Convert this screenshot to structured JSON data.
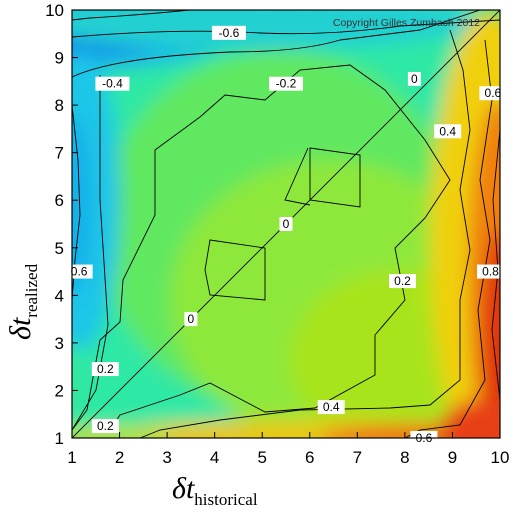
{
  "chart_data": {
    "type": "contour",
    "x_values": [
      1,
      2,
      3,
      4,
      5,
      6,
      7,
      8,
      9,
      10
    ],
    "y_values": [
      1,
      2,
      3,
      4,
      5,
      6,
      7,
      8,
      9,
      10
    ],
    "xlim": [
      1,
      10
    ],
    "ylim": [
      1,
      10
    ],
    "xlabel": {
      "main": "δt",
      "sub": "historical"
    },
    "ylabel": {
      "main": "δt",
      "sub": "realized"
    },
    "x_ticks": [
      "1",
      "2",
      "3",
      "4",
      "5",
      "6",
      "7",
      "8",
      "9",
      "10"
    ],
    "y_ticks": [
      "1",
      "2",
      "3",
      "4",
      "5",
      "6",
      "7",
      "8",
      "9",
      "10"
    ],
    "annotation": "Copyright Gilles Zumbach 2012",
    "colormap": "rainbow (blue = low, red = high)",
    "contour_levels": [
      -0.6,
      -0.4,
      -0.2,
      0,
      0.2,
      0.4,
      0.6,
      0.8
    ],
    "contour_labels": [
      {
        "text": "-0.6",
        "x": 4.3,
        "y": 9.52
      },
      {
        "text": "-0.4",
        "x": 1.85,
        "y": 8.45
      },
      {
        "text": "-0.2",
        "x": 5.5,
        "y": 8.45
      },
      {
        "text": "0",
        "x": 8.2,
        "y": 8.55
      },
      {
        "text": "0.6",
        "x": 9.85,
        "y": 8.25
      },
      {
        "text": "0.4",
        "x": 8.9,
        "y": 7.45
      },
      {
        "text": "0",
        "x": 5.5,
        "y": 5.5
      },
      {
        "text": "0.2",
        "x": 7.95,
        "y": 4.3
      },
      {
        "text": "0.6",
        "x": 1.15,
        "y": 4.5
      },
      {
        "text": "0.8",
        "x": 9.8,
        "y": 4.5
      },
      {
        "text": "0",
        "x": 3.5,
        "y": 3.5
      },
      {
        "text": "0.2",
        "x": 1.7,
        "y": 2.45
      },
      {
        "text": "0.4",
        "x": 6.45,
        "y": 1.65
      },
      {
        "text": "0.2",
        "x": 1.7,
        "y": 1.25
      },
      {
        "text": "0.6",
        "x": 8.4,
        "y": 1.0
      }
    ]
  }
}
